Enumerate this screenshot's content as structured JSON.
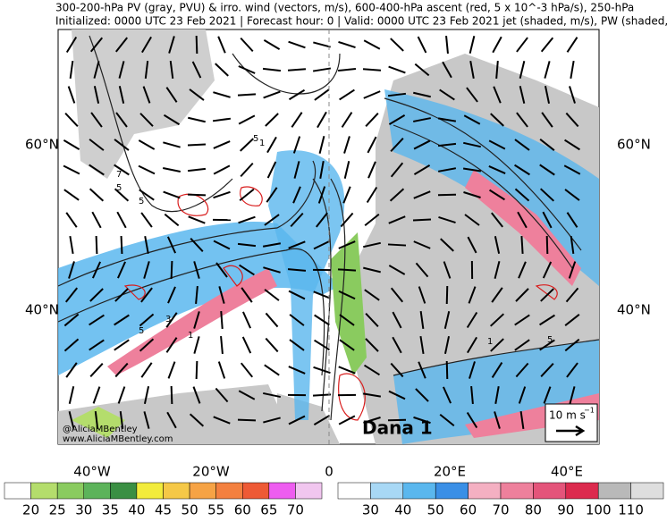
{
  "header": {
    "line1": "300-200-hPa PV (gray, PVU) & irro. wind (vectors, m/s), 600-400-hPa ascent (red, 5 x 10^-3 hPa/s), 250-hPa",
    "line2": "Initialized: 0000 UTC 23 Feb 2021 | Forecast hour: 0 | Valid: 0000 UTC 23 Feb 2021 jet (shaded, m/s), PW (shaded, mm)"
  },
  "map": {
    "lat_labels": [
      "60°N",
      "40°N"
    ],
    "lon_labels": [
      "40°W",
      "20°W",
      "0",
      "20°E",
      "40°E"
    ],
    "contour_labels": [
      "5",
      "7",
      "5",
      "1",
      "3",
      "5",
      "1",
      "5",
      "1",
      "5"
    ],
    "annotation": "Dana 1",
    "watermark": [
      "@AliciaMBentley",
      "www.AliciaMBentley.com"
    ],
    "vector_key": {
      "label": "10 m s",
      "exponent": "−1"
    }
  },
  "colorbars": [
    {
      "labels": [
        "20",
        "25",
        "30",
        "35",
        "40",
        "45",
        "50",
        "55",
        "60",
        "65",
        "70"
      ],
      "colors": [
        "#ffffff",
        "#b4dd6c",
        "#8acb5f",
        "#5cb35a",
        "#3a8f43",
        "#f2ec3c",
        "#f5c847",
        "#f6a345",
        "#f3803f",
        "#ee5a35",
        "#ee5df0",
        "#f1c6ef"
      ]
    },
    {
      "labels": [
        "30",
        "40",
        "50",
        "60",
        "70",
        "80",
        "90",
        "100",
        "110"
      ],
      "colors": [
        "#ffffff",
        "#a8d8f5",
        "#5ab7ee",
        "#3a8fe6",
        "#f4b0c2",
        "#ee809c",
        "#e4547a",
        "#dc2a4e",
        "#b9b9b9",
        "#dedede"
      ]
    }
  ]
}
